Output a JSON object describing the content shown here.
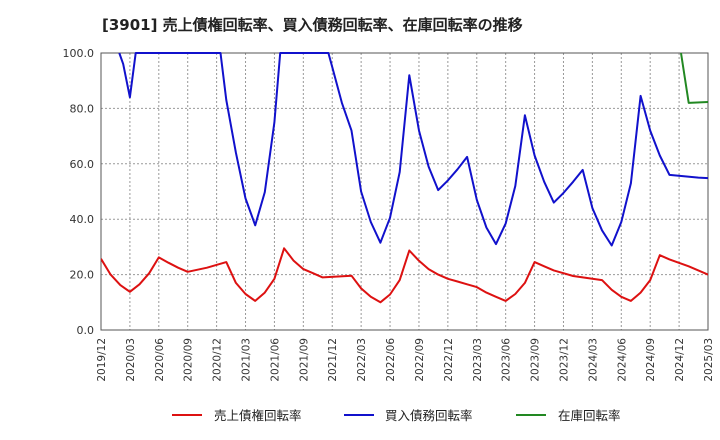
{
  "chart_data": {
    "type": "line",
    "title": "[3901]  売上債権回転率、買入債務回転率、在庫回転率の推移",
    "xlabel": "",
    "ylabel": "",
    "ylim": [
      0,
      100
    ],
    "yticks": [
      "0.0",
      "20.0",
      "40.0",
      "60.0",
      "80.0",
      "100.0"
    ],
    "ytick_values": [
      0,
      20,
      40,
      60,
      80,
      100
    ],
    "x_tick_labels": [
      "2019/12",
      "2020/03",
      "2020/06",
      "2020/09",
      "2020/12",
      "2021/03",
      "2021/06",
      "2021/09",
      "2021/12",
      "2022/03",
      "2022/06",
      "2022/09",
      "2022/12",
      "2023/03",
      "2023/06",
      "2023/09",
      "2023/12",
      "2024/03",
      "2024/06",
      "2024/09",
      "2024/12",
      "2025/03"
    ],
    "x_range_months": [
      0,
      63
    ],
    "grid": true,
    "series": [
      {
        "name": "売上債権回転率",
        "color": "#dd1111",
        "points": [
          [
            0,
            25.7
          ],
          [
            1,
            20.0
          ],
          [
            2,
            16.2
          ],
          [
            3,
            13.8
          ],
          [
            4,
            16.5
          ],
          [
            5,
            20.5
          ],
          [
            6,
            26.2
          ],
          [
            7,
            24.3
          ],
          [
            8,
            22.5
          ],
          [
            9,
            21.0
          ],
          [
            11,
            22.5
          ],
          [
            13,
            24.5
          ],
          [
            14,
            17.0
          ],
          [
            15,
            13.0
          ],
          [
            16,
            10.5
          ],
          [
            17,
            13.5
          ],
          [
            18,
            18.5
          ],
          [
            19,
            29.5
          ],
          [
            20,
            25.0
          ],
          [
            21,
            22.0
          ],
          [
            22,
            20.5
          ],
          [
            23,
            19.0
          ],
          [
            26,
            19.6
          ],
          [
            27,
            15.0
          ],
          [
            28,
            12.0
          ],
          [
            29,
            10.0
          ],
          [
            30,
            12.8
          ],
          [
            31,
            18.0
          ],
          [
            32,
            28.7
          ],
          [
            33,
            25.0
          ],
          [
            34,
            22.0
          ],
          [
            35,
            20.0
          ],
          [
            36,
            18.5
          ],
          [
            37,
            17.5
          ],
          [
            38,
            16.5
          ],
          [
            39,
            15.5
          ],
          [
            40,
            13.5
          ],
          [
            41,
            12.0
          ],
          [
            42,
            10.5
          ],
          [
            43,
            13.0
          ],
          [
            44,
            17.0
          ],
          [
            45,
            24.5
          ],
          [
            46,
            23.0
          ],
          [
            47,
            21.5
          ],
          [
            48,
            20.5
          ],
          [
            49,
            19.5
          ],
          [
            52,
            18.0
          ],
          [
            53,
            14.5
          ],
          [
            54,
            12.0
          ],
          [
            55,
            10.5
          ],
          [
            56,
            13.5
          ],
          [
            57,
            18.0
          ],
          [
            58,
            27.0
          ],
          [
            59,
            25.5
          ],
          [
            61,
            23.0
          ],
          [
            63,
            20.0
          ],
          [
            65,
            18.0
          ]
        ]
      },
      {
        "name": "買入債務回転率",
        "color": "#1111cc",
        "points": [
          [
            1.9,
            100
          ],
          [
            2.3,
            96.0
          ],
          [
            3,
            84.0
          ],
          [
            3.6,
            100
          ],
          [
            12.4,
            100
          ],
          [
            13,
            83.0
          ],
          [
            14,
            64.0
          ],
          [
            15,
            47.5
          ],
          [
            16,
            37.8
          ],
          [
            17,
            49.8
          ],
          [
            18,
            75.0
          ],
          [
            18.6,
            100
          ],
          [
            23.6,
            100
          ],
          [
            24,
            95.0
          ],
          [
            25,
            82.0
          ],
          [
            26,
            72.0
          ],
          [
            27,
            50.0
          ],
          [
            28,
            39.0
          ],
          [
            29,
            31.5
          ],
          [
            30,
            40.5
          ],
          [
            31,
            57.0
          ],
          [
            32,
            92.0
          ],
          [
            33,
            72.0
          ],
          [
            34,
            59.0
          ],
          [
            35,
            50.5
          ],
          [
            36,
            54.0
          ],
          [
            37,
            58.0
          ],
          [
            38,
            62.5
          ],
          [
            39,
            47.0
          ],
          [
            40,
            37.0
          ],
          [
            41,
            31.0
          ],
          [
            42,
            38.5
          ],
          [
            43,
            52.0
          ],
          [
            44,
            77.5
          ],
          [
            45,
            63.0
          ],
          [
            46,
            53.5
          ],
          [
            47,
            46.0
          ],
          [
            48,
            49.5
          ],
          [
            49,
            53.5
          ],
          [
            50,
            57.8
          ],
          [
            51,
            44.0
          ],
          [
            52,
            36.0
          ],
          [
            53,
            30.5
          ],
          [
            54,
            39.0
          ],
          [
            55,
            53.0
          ],
          [
            56,
            84.5
          ],
          [
            57,
            72.0
          ],
          [
            58,
            63.0
          ],
          [
            59,
            56.0
          ],
          [
            62,
            55.0
          ],
          [
            65,
            54.5
          ]
        ]
      },
      {
        "name": "在庫回転率",
        "color": "#228822",
        "points": [
          [
            60.2,
            100
          ],
          [
            61,
            82.0
          ],
          [
            63,
            82.3
          ],
          [
            65,
            82.5
          ]
        ]
      }
    ],
    "legend": [
      "売上債権回転率",
      "買入債務回転率",
      "在庫回転率"
    ],
    "legend_position": "bottom"
  }
}
